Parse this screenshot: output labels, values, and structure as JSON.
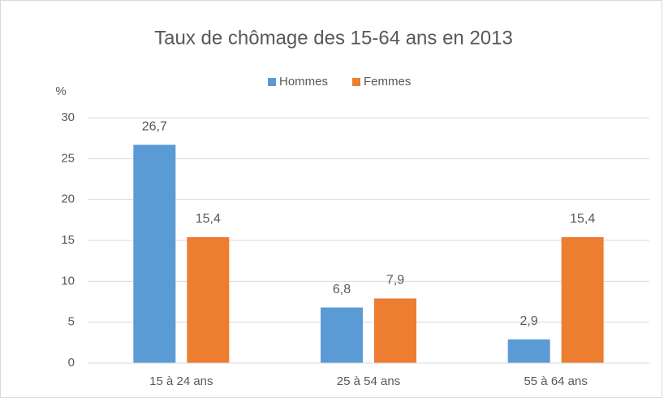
{
  "chart_data": {
    "type": "bar",
    "title": "Taux de chômage des 15-64 ans en 2013",
    "ylabel": "%",
    "categories": [
      "15 à 24 ans",
      "25 à 54 ans",
      "55 à 64 ans"
    ],
    "series": [
      {
        "name": "Hommes",
        "color": "#5b9bd5",
        "values": [
          26.7,
          6.8,
          2.9
        ],
        "value_labels": [
          "26,7",
          "6,8",
          "2,9"
        ]
      },
      {
        "name": "Femmes",
        "color": "#ed7d31",
        "values": [
          15.4,
          7.9,
          15.4
        ],
        "value_labels": [
          "15,4",
          "7,9",
          "15,4"
        ]
      }
    ],
    "ylim": [
      0,
      30
    ],
    "yticks": [
      0,
      5,
      10,
      15,
      20,
      25,
      30
    ],
    "grid": true,
    "legend": "top"
  }
}
